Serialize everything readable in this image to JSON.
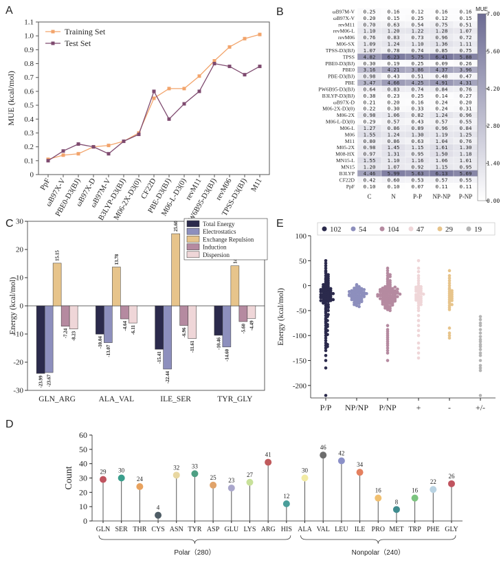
{
  "colors": {
    "training": "#f2a46b",
    "test": "#7e4a6f",
    "heat_low": "#ffffff",
    "heat_high": "#6c6b93",
    "total": "#2b2a4c",
    "elec": "#8d8fbd",
    "exch": "#e7c48b",
    "ind": "#b58aa0",
    "disp": "#efd6d8",
    "E_cats": [
      "#2b2a4c",
      "#8d8fbd",
      "#b58aa0",
      "#efd6d8",
      "#e7c48b",
      "#b5b5b5"
    ],
    "D_points": [
      "#c0545f",
      "#3a9e8c",
      "#e8a25e",
      "#4f5d66",
      "#e8d7a1",
      "#4e9f83",
      "#e0a36a",
      "#a9a6cb",
      "#c8e19a",
      "#c05a5c",
      "#4a9e9a",
      "#f2eba4",
      "#6d6d6d",
      "#8b90c8",
      "#e4805f",
      "#f1c070",
      "#3f8c8f",
      "#7cc47f",
      "#b9d3e3",
      "#c0545f"
    ]
  },
  "panel_labels": {
    "a": "A",
    "b": "B",
    "c": "C",
    "d": "D",
    "e": "E"
  },
  "chart_data": [
    {
      "type": "line",
      "panel": "A",
      "ylabel": "MUE  (kcal/mol)",
      "ylim": [
        0,
        1.1
      ],
      "yticks": [
        "0",
        "0.1",
        "0.2",
        "0.3",
        "0.4",
        "0.5",
        "0.6",
        "0.7",
        "0.8",
        "0.9",
        "1.0",
        "1.1"
      ],
      "categories": [
        "PpF",
        "ωB97X-V",
        "PBE0-D3(BJ)",
        "ωB97X-D",
        "ωB97M-V",
        "B3LYP-D3(BJ)",
        "M06-2X-D3(0)",
        "CF22D",
        "PBE-D3(BJ)",
        "M06-L-D3(0)",
        "revM11",
        "PW6B95-D3(BJ)",
        "revM06",
        "TPSS-D3(BJ)",
        "M11"
      ],
      "legend_position": "top-left",
      "series": [
        {
          "name": "Training Set",
          "values": [
            0.11,
            0.14,
            0.15,
            0.2,
            0.21,
            0.24,
            0.3,
            0.55,
            0.62,
            0.62,
            0.71,
            0.82,
            0.92,
            0.98,
            1.01
          ]
        },
        {
          "name": "Test Set",
          "values": [
            0.1,
            0.17,
            0.22,
            0.2,
            0.15,
            0.24,
            0.29,
            0.6,
            0.4,
            0.51,
            0.6,
            0.8,
            0.78,
            0.72,
            0.78
          ]
        }
      ]
    },
    {
      "type": "heatmap",
      "panel": "B",
      "rows": [
        "ωB97M-V",
        "ωB97X-V",
        "revM11",
        "revM06-L",
        "revM06",
        "M06-SX",
        "TPSS-D3(BJ)",
        "TPSS",
        "PBE0-D3(BJ)",
        "PBE0",
        "PBE-D3(BJ)",
        "PBE",
        "PW6B95-D3(BJ)",
        "B3LYP-D3(BJ)",
        "ωB97X-D",
        "M06-2X-D3(0)",
        "M06-2X",
        "M06-L-D3(0)",
        "M06-L",
        "M06",
        "M11",
        "M05-2X",
        "M08-HX",
        "MN15-L",
        "MN15",
        "B3LYP",
        "CF22D",
        "PpF"
      ],
      "columns": [
        "C",
        "N",
        "P-P",
        "NP-NP",
        "P-NP"
      ],
      "values": [
        [
          "0.25",
          "0.16",
          "0.12",
          "0.16",
          "0.16"
        ],
        [
          "0.20",
          "0.15",
          "0.25",
          "0.12",
          "0.15"
        ],
        [
          "0.70",
          "0.63",
          "0.54",
          "0.75",
          "0.51"
        ],
        [
          "1.10",
          "1.20",
          "1.22",
          "1.28",
          "1.07"
        ],
        [
          "0.76",
          "0.83",
          "0.73",
          "0.96",
          "0.72"
        ],
        [
          "1.09",
          "1.24",
          "1.10",
          "1.36",
          "1.11"
        ],
        [
          "1.07",
          "0.78",
          "0.74",
          "0.85",
          "0.75"
        ],
        [
          "4.82",
          "6.23",
          "5.75",
          "6.41",
          "5.88"
        ],
        [
          "0.30",
          "0.19",
          "0.25",
          "0.09",
          "0.26"
        ],
        [
          "3.16",
          "4.21",
          "3.86",
          "4.37",
          "3.96"
        ],
        [
          "0.98",
          "0.43",
          "0.51",
          "0.48",
          "0.47"
        ],
        [
          "3.47",
          "4.66",
          "4.25",
          "4.91",
          "4.31"
        ],
        [
          "0.64",
          "0.83",
          "0.74",
          "0.84",
          "0.76"
        ],
        [
          "0.38",
          "0.23",
          "0.25",
          "0.14",
          "0.27"
        ],
        [
          "0.21",
          "0.20",
          "0.16",
          "0.24",
          "0.20"
        ],
        [
          "0.22",
          "0.30",
          "0.33",
          "0.24",
          "0.31"
        ],
        [
          "0.98",
          "1.06",
          "0.82",
          "1.24",
          "0.96"
        ],
        [
          "0.29",
          "0.57",
          "0.43",
          "0.57",
          "0.55"
        ],
        [
          "1.27",
          "0.86",
          "0.89",
          "0.96",
          "0.84"
        ],
        [
          "1.55",
          "1.24",
          "1.30",
          "1.19",
          "1.25"
        ],
        [
          "0.80",
          "0.86",
          "0.63",
          "1.04",
          "0.76"
        ],
        [
          "0.98",
          "1.45",
          "1.15",
          "1.61",
          "1.30"
        ],
        [
          "0.97",
          "1.31",
          "0.95",
          "1.50",
          "1.18"
        ],
        [
          "1.55",
          "1.10",
          "1.16",
          "1.06",
          "1.01"
        ],
        [
          "1.20",
          "1.07",
          "0.92",
          "1.15",
          "0.95"
        ],
        [
          "4.46",
          "5.99",
          "5.63",
          "6.13",
          "5.69"
        ],
        [
          "0.42",
          "0.60",
          "0.53",
          "0.57",
          "0.55"
        ],
        [
          "0.10",
          "0.10",
          "0.07",
          "0.11",
          "0.11"
        ]
      ],
      "colorbar_title": "MUE",
      "colorbar_range": [
        0,
        7
      ],
      "colorbar_ticks": [
        "7.00",
        "5.60",
        "4.20",
        "2.80",
        "1.40",
        "0.00"
      ]
    },
    {
      "type": "bar",
      "panel": "C",
      "ylabel": "Energy  (kcal/mol)",
      "ylim": [
        -30,
        30
      ],
      "yticks": [
        "-30",
        "-20",
        "-10",
        "0",
        "10",
        "20",
        "30"
      ],
      "categories": [
        "GLN_ARG",
        "ALA_VAL",
        "ILE_SER",
        "TYR_GLY"
      ],
      "legend_position": "top-right",
      "series": [
        {
          "name": "Total Energy",
          "values": [
            -23.99,
            -10.04,
            -15.41,
            -10.46
          ],
          "labels": [
            "-23.99",
            "-10.04",
            "-15.41",
            "-10.46"
          ]
        },
        {
          "name": "Electrostatics",
          "values": [
            -23.67,
            -13.07,
            -22.44,
            -14.6
          ],
          "labels": [
            "-23.67",
            "-13.07",
            "-22.44",
            "-14.60"
          ]
        },
        {
          "name": "Exchange Repulsion",
          "values": [
            15.15,
            13.78,
            25.6,
            14.22
          ],
          "labels": [
            "15.15",
            "13.78",
            "25.60",
            "14.22"
          ]
        },
        {
          "name": "Induction",
          "values": [
            -7.24,
            -4.64,
            -6.96,
            -5.6
          ],
          "labels": [
            "-7.24",
            "-4.64",
            "-6.96",
            "-5.60"
          ]
        },
        {
          "name": "Dispersion",
          "values": [
            -8.23,
            -6.11,
            -11.61,
            -4.49
          ],
          "labels": [
            "-8.23",
            "-6.11",
            "-11.61",
            "-4.49"
          ]
        }
      ]
    },
    {
      "type": "scatter",
      "panel": "D",
      "ylabel": "Count",
      "ylim": [
        0,
        60
      ],
      "yticks": [
        "0",
        "10",
        "20",
        "30",
        "40",
        "50",
        "60"
      ],
      "categories": [
        "GLN",
        "SER",
        "THR",
        "CYS",
        "ASN",
        "TYR",
        "ASP",
        "GLU",
        "LYS",
        "ARG",
        "HIS",
        "ALA",
        "VAL",
        "LEU",
        "ILE",
        "PRO",
        "MET",
        "TRP",
        "PHE",
        "GLY"
      ],
      "values": [
        29,
        30,
        24,
        4,
        32,
        33,
        25,
        23,
        27,
        41,
        12,
        30,
        46,
        42,
        34,
        16,
        8,
        16,
        22,
        26
      ],
      "value_labels": [
        "29",
        "30",
        "24",
        "4",
        "32",
        "33",
        "25",
        "23",
        "27",
        "41",
        "12",
        "30",
        "46",
        "42",
        "34",
        "16",
        "8",
        "16",
        "22",
        "26"
      ],
      "groups": [
        {
          "label": "Polar（280）",
          "from": 0,
          "to": 10
        },
        {
          "label": "Nonpolar（240）",
          "from": 11,
          "to": 19
        }
      ]
    },
    {
      "type": "scatter",
      "panel": "E",
      "ylabel": "Energy  (kcal/mol)",
      "ylim": [
        -225,
        100
      ],
      "yticks": [
        "100",
        "50",
        "0",
        "-50",
        "-100",
        "-150",
        "-200"
      ],
      "categories": [
        "P/P",
        "NP/NP",
        "P/NP",
        "+",
        "-",
        "+/-"
      ],
      "legend_position": "top",
      "legend": [
        "102",
        "54",
        "104",
        "47",
        "29",
        "19"
      ],
      "series": [
        {
          "name": "102",
          "values": [
            50,
            45,
            40,
            35,
            30,
            28,
            25,
            22,
            20,
            18,
            15,
            14,
            12,
            10,
            8,
            6,
            5,
            3,
            2,
            0,
            -1,
            -2,
            -3,
            -4,
            -5,
            -6,
            -7,
            -8,
            -9,
            -10,
            -11,
            -12,
            -13,
            -14,
            -15,
            -16,
            -17,
            -18,
            -19,
            -20,
            -21,
            -22,
            -23,
            -24,
            -25,
            -26,
            -27,
            -28,
            -29,
            -30,
            -31,
            -32,
            -34,
            -36,
            -38,
            -40,
            -42,
            -45,
            -48,
            -50,
            -52,
            -55,
            -58,
            -60,
            -62,
            -65,
            -68,
            -70,
            -72,
            -75,
            -78,
            -80,
            -82,
            -85,
            -88,
            -90,
            -92,
            -95,
            -98,
            -100,
            -105,
            -110,
            -115,
            -118,
            -120,
            -122,
            -125,
            -130,
            -140,
            -150,
            -165,
            -220,
            -12,
            -18,
            -24,
            -30,
            -8,
            -16,
            -22,
            -28,
            -35,
            -44
          ]
        },
        {
          "name": "54",
          "values": [
            2,
            0,
            -2,
            -3,
            -4,
            -5,
            -6,
            -7,
            -8,
            -9,
            -10,
            -10,
            -11,
            -12,
            -12,
            -13,
            -14,
            -14,
            -15,
            -15,
            -16,
            -16,
            -17,
            -18,
            -18,
            -19,
            -20,
            -20,
            -21,
            -22,
            -22,
            -23,
            -24,
            -25,
            -26,
            -27,
            -28,
            -29,
            -30,
            -31,
            -32,
            -34,
            -35,
            -36,
            -38,
            -40,
            -42,
            -8,
            -12,
            -16,
            -20,
            -24,
            -28,
            -32
          ]
        },
        {
          "name": "104",
          "values": [
            35,
            30,
            25,
            22,
            20,
            18,
            15,
            12,
            10,
            8,
            6,
            4,
            2,
            0,
            -1,
            -2,
            -3,
            -4,
            -5,
            -6,
            -7,
            -8,
            -9,
            -10,
            -10,
            -11,
            -12,
            -12,
            -13,
            -14,
            -14,
            -15,
            -15,
            -16,
            -16,
            -17,
            -18,
            -18,
            -19,
            -20,
            -20,
            -21,
            -22,
            -22,
            -23,
            -24,
            -24,
            -25,
            -26,
            -27,
            -28,
            -29,
            -30,
            -31,
            -32,
            -33,
            -34,
            -35,
            -36,
            -38,
            -40,
            -42,
            -44,
            -46,
            -48,
            -50,
            -80,
            -88,
            -92,
            -96,
            -100,
            -104,
            -108,
            -112,
            -116,
            -120,
            -125,
            -130,
            -135,
            -150,
            -5,
            -10,
            -15,
            -20,
            -25,
            -30,
            -35,
            -8,
            -12,
            -18,
            -22,
            -28,
            -33,
            -3,
            -7,
            -13,
            -17,
            -21,
            -26,
            -31,
            -37,
            -41,
            -45,
            -39
          ]
        },
        {
          "name": "47",
          "values": [
            50,
            35,
            28,
            20,
            15,
            10,
            5,
            0,
            -2,
            -5,
            -6,
            -8,
            -10,
            -12,
            -14,
            -15,
            -16,
            -18,
            -20,
            -22,
            -24,
            -26,
            -28,
            -30,
            -32,
            -35,
            -38,
            -40,
            -45,
            -50,
            -60,
            -70,
            -80,
            -90,
            -100,
            -115,
            -125,
            -135,
            -145,
            -3,
            -7,
            -11,
            -17,
            -21,
            -25,
            -29,
            -33
          ]
        },
        {
          "name": "29",
          "values": [
            30,
            20,
            15,
            10,
            5,
            0,
            -5,
            -8,
            -10,
            -12,
            -14,
            -16,
            -18,
            -20,
            -22,
            -24,
            -26,
            -28,
            -30,
            -32,
            -35,
            -38,
            -40,
            -44,
            -48,
            -85,
            -95,
            -100,
            -105
          ]
        },
        {
          "name": "19",
          "values": [
            -62,
            -68,
            -75,
            -80,
            -88,
            -95,
            -102,
            -108,
            -112,
            -118,
            -122,
            -128,
            -135,
            -140,
            -150,
            -160,
            -165,
            -170,
            -220
          ]
        }
      ]
    }
  ]
}
